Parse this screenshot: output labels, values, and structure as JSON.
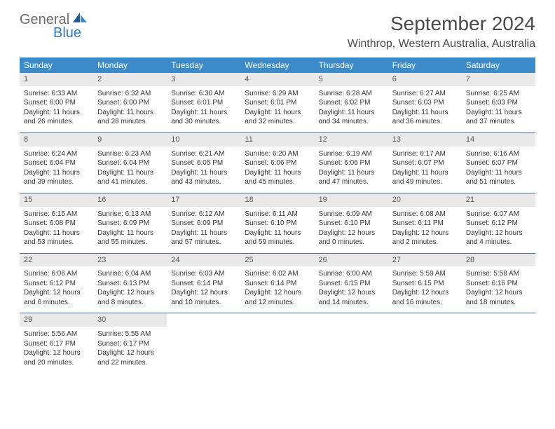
{
  "colors": {
    "header_bg": "#3b8bca",
    "header_text": "#ffffff",
    "daynum_bg": "#e9e9e9",
    "daynum_text": "#555555",
    "body_text": "#333333",
    "row_divider": "#3b6fa0",
    "title_text": "#4a4a4a",
    "logo_gray": "#6b6b6b",
    "logo_blue": "#2f78c2"
  },
  "logo": {
    "line1": "General",
    "line2": "Blue"
  },
  "title": "September 2024",
  "location": "Winthrop, Western Australia, Australia",
  "weekdays": [
    "Sunday",
    "Monday",
    "Tuesday",
    "Wednesday",
    "Thursday",
    "Friday",
    "Saturday"
  ],
  "weeks": [
    [
      {
        "n": "1",
        "sunrise": "Sunrise: 6:33 AM",
        "sunset": "Sunset: 6:00 PM",
        "daylight": "Daylight: 11 hours and 26 minutes."
      },
      {
        "n": "2",
        "sunrise": "Sunrise: 6:32 AM",
        "sunset": "Sunset: 6:00 PM",
        "daylight": "Daylight: 11 hours and 28 minutes."
      },
      {
        "n": "3",
        "sunrise": "Sunrise: 6:30 AM",
        "sunset": "Sunset: 6:01 PM",
        "daylight": "Daylight: 11 hours and 30 minutes."
      },
      {
        "n": "4",
        "sunrise": "Sunrise: 6:29 AM",
        "sunset": "Sunset: 6:01 PM",
        "daylight": "Daylight: 11 hours and 32 minutes."
      },
      {
        "n": "5",
        "sunrise": "Sunrise: 6:28 AM",
        "sunset": "Sunset: 6:02 PM",
        "daylight": "Daylight: 11 hours and 34 minutes."
      },
      {
        "n": "6",
        "sunrise": "Sunrise: 6:27 AM",
        "sunset": "Sunset: 6:03 PM",
        "daylight": "Daylight: 11 hours and 36 minutes."
      },
      {
        "n": "7",
        "sunrise": "Sunrise: 6:25 AM",
        "sunset": "Sunset: 6:03 PM",
        "daylight": "Daylight: 11 hours and 37 minutes."
      }
    ],
    [
      {
        "n": "8",
        "sunrise": "Sunrise: 6:24 AM",
        "sunset": "Sunset: 6:04 PM",
        "daylight": "Daylight: 11 hours and 39 minutes."
      },
      {
        "n": "9",
        "sunrise": "Sunrise: 6:23 AM",
        "sunset": "Sunset: 6:04 PM",
        "daylight": "Daylight: 11 hours and 41 minutes."
      },
      {
        "n": "10",
        "sunrise": "Sunrise: 6:21 AM",
        "sunset": "Sunset: 6:05 PM",
        "daylight": "Daylight: 11 hours and 43 minutes."
      },
      {
        "n": "11",
        "sunrise": "Sunrise: 6:20 AM",
        "sunset": "Sunset: 6:06 PM",
        "daylight": "Daylight: 11 hours and 45 minutes."
      },
      {
        "n": "12",
        "sunrise": "Sunrise: 6:19 AM",
        "sunset": "Sunset: 6:06 PM",
        "daylight": "Daylight: 11 hours and 47 minutes."
      },
      {
        "n": "13",
        "sunrise": "Sunrise: 6:17 AM",
        "sunset": "Sunset: 6:07 PM",
        "daylight": "Daylight: 11 hours and 49 minutes."
      },
      {
        "n": "14",
        "sunrise": "Sunrise: 6:16 AM",
        "sunset": "Sunset: 6:07 PM",
        "daylight": "Daylight: 11 hours and 51 minutes."
      }
    ],
    [
      {
        "n": "15",
        "sunrise": "Sunrise: 6:15 AM",
        "sunset": "Sunset: 6:08 PM",
        "daylight": "Daylight: 11 hours and 53 minutes."
      },
      {
        "n": "16",
        "sunrise": "Sunrise: 6:13 AM",
        "sunset": "Sunset: 6:09 PM",
        "daylight": "Daylight: 11 hours and 55 minutes."
      },
      {
        "n": "17",
        "sunrise": "Sunrise: 6:12 AM",
        "sunset": "Sunset: 6:09 PM",
        "daylight": "Daylight: 11 hours and 57 minutes."
      },
      {
        "n": "18",
        "sunrise": "Sunrise: 6:11 AM",
        "sunset": "Sunset: 6:10 PM",
        "daylight": "Daylight: 11 hours and 59 minutes."
      },
      {
        "n": "19",
        "sunrise": "Sunrise: 6:09 AM",
        "sunset": "Sunset: 6:10 PM",
        "daylight": "Daylight: 12 hours and 0 minutes."
      },
      {
        "n": "20",
        "sunrise": "Sunrise: 6:08 AM",
        "sunset": "Sunset: 6:11 PM",
        "daylight": "Daylight: 12 hours and 2 minutes."
      },
      {
        "n": "21",
        "sunrise": "Sunrise: 6:07 AM",
        "sunset": "Sunset: 6:12 PM",
        "daylight": "Daylight: 12 hours and 4 minutes."
      }
    ],
    [
      {
        "n": "22",
        "sunrise": "Sunrise: 6:06 AM",
        "sunset": "Sunset: 6:12 PM",
        "daylight": "Daylight: 12 hours and 6 minutes."
      },
      {
        "n": "23",
        "sunrise": "Sunrise: 6:04 AM",
        "sunset": "Sunset: 6:13 PM",
        "daylight": "Daylight: 12 hours and 8 minutes."
      },
      {
        "n": "24",
        "sunrise": "Sunrise: 6:03 AM",
        "sunset": "Sunset: 6:14 PM",
        "daylight": "Daylight: 12 hours and 10 minutes."
      },
      {
        "n": "25",
        "sunrise": "Sunrise: 6:02 AM",
        "sunset": "Sunset: 6:14 PM",
        "daylight": "Daylight: 12 hours and 12 minutes."
      },
      {
        "n": "26",
        "sunrise": "Sunrise: 6:00 AM",
        "sunset": "Sunset: 6:15 PM",
        "daylight": "Daylight: 12 hours and 14 minutes."
      },
      {
        "n": "27",
        "sunrise": "Sunrise: 5:59 AM",
        "sunset": "Sunset: 6:15 PM",
        "daylight": "Daylight: 12 hours and 16 minutes."
      },
      {
        "n": "28",
        "sunrise": "Sunrise: 5:58 AM",
        "sunset": "Sunset: 6:16 PM",
        "daylight": "Daylight: 12 hours and 18 minutes."
      }
    ],
    [
      {
        "n": "29",
        "sunrise": "Sunrise: 5:56 AM",
        "sunset": "Sunset: 6:17 PM",
        "daylight": "Daylight: 12 hours and 20 minutes."
      },
      {
        "n": "30",
        "sunrise": "Sunrise: 5:55 AM",
        "sunset": "Sunset: 6:17 PM",
        "daylight": "Daylight: 12 hours and 22 minutes."
      },
      null,
      null,
      null,
      null,
      null
    ]
  ]
}
